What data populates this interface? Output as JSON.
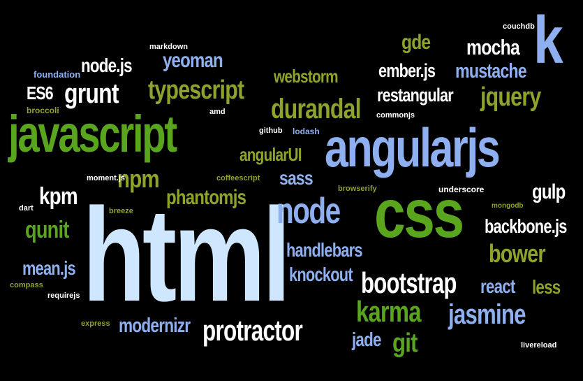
{
  "colors": {
    "white": "#ffffff",
    "light_blue": "#cfe6ff",
    "blue": "#8fb0f0",
    "green": "#5aa51e",
    "olive": "#8da32b"
  },
  "words": [
    {
      "text": "html",
      "color": "light_blue"
    },
    {
      "text": "css",
      "color": "green"
    },
    {
      "text": "javascript",
      "color": "green"
    },
    {
      "text": "angularjs",
      "color": "blue"
    },
    {
      "text": "node",
      "color": "blue"
    },
    {
      "text": "bootstrap",
      "color": "white"
    },
    {
      "text": "protractor",
      "color": "white"
    },
    {
      "text": "typescript",
      "color": "olive"
    },
    {
      "text": "durandal",
      "color": "olive"
    },
    {
      "text": "grunt",
      "color": "white"
    },
    {
      "text": "jquery",
      "color": "olive"
    },
    {
      "text": "jasmine",
      "color": "blue"
    },
    {
      "text": "karma",
      "color": "green"
    },
    {
      "text": "bower",
      "color": "olive"
    },
    {
      "text": "npm",
      "color": "olive"
    },
    {
      "text": "kpm",
      "color": "white"
    },
    {
      "text": "qunit",
      "color": "green"
    },
    {
      "text": "phantomjs",
      "color": "olive"
    },
    {
      "text": "sass",
      "color": "blue"
    },
    {
      "text": "angularUI",
      "color": "olive"
    },
    {
      "text": "webstorm",
      "color": "olive"
    },
    {
      "text": "restangular",
      "color": "white"
    },
    {
      "text": "ember.js",
      "color": "white"
    },
    {
      "text": "mustache",
      "color": "blue"
    },
    {
      "text": "mocha",
      "color": "white"
    },
    {
      "text": "gde",
      "color": "olive"
    },
    {
      "text": "k",
      "color": "blue"
    },
    {
      "text": "yeoman",
      "color": "blue"
    },
    {
      "text": "node.js",
      "color": "white"
    },
    {
      "text": "ES6",
      "color": "white"
    },
    {
      "text": "handlebars",
      "color": "blue"
    },
    {
      "text": "knockout",
      "color": "blue"
    },
    {
      "text": "mean.js",
      "color": "blue"
    },
    {
      "text": "backbone.js",
      "color": "white"
    },
    {
      "text": "react",
      "color": "blue"
    },
    {
      "text": "less",
      "color": "olive"
    },
    {
      "text": "gulp",
      "color": "white"
    },
    {
      "text": "modernizr",
      "color": "blue"
    },
    {
      "text": "jade",
      "color": "blue"
    },
    {
      "text": "git",
      "color": "green"
    },
    {
      "text": "markdown",
      "color": "white"
    },
    {
      "text": "foundation",
      "color": "blue"
    },
    {
      "text": "broccoli",
      "color": "olive"
    },
    {
      "text": "amd",
      "color": "white"
    },
    {
      "text": "github",
      "color": "white"
    },
    {
      "text": "lodash",
      "color": "blue"
    },
    {
      "text": "commonjs",
      "color": "white"
    },
    {
      "text": "couchdb",
      "color": "white"
    },
    {
      "text": "moment.js",
      "color": "white"
    },
    {
      "text": "coffeescript",
      "color": "olive"
    },
    {
      "text": "browserify",
      "color": "olive"
    },
    {
      "text": "underscore",
      "color": "white"
    },
    {
      "text": "mongodb",
      "color": "olive"
    },
    {
      "text": "dart",
      "color": "white"
    },
    {
      "text": "breeze",
      "color": "olive"
    },
    {
      "text": "compass",
      "color": "olive"
    },
    {
      "text": "requirejs",
      "color": "white"
    },
    {
      "text": "express",
      "color": "olive"
    },
    {
      "text": "livereload",
      "color": "white"
    }
  ]
}
